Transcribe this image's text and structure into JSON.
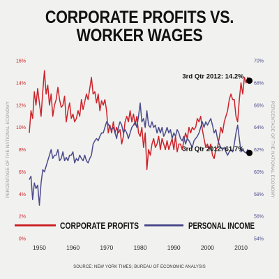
{
  "title_line1": "CORPORATE PROFITS VS.",
  "title_line2": "WORKER WAGES",
  "source": "SOURCE: NEW YORK TIMES; BUREAU OF ECONOMIC ANALYSIS",
  "chart_data": {
    "type": "line",
    "xlabel": "",
    "ylabel_left": "PERCENTAGE OF THE NATIONAL ECONOMY",
    "ylabel_right": "PERCENTAGE OF THE NATIONAL ECONOMY",
    "xlim": [
      1947,
      2013
    ],
    "ylim_left": [
      0,
      16
    ],
    "ylim_right": [
      54,
      70
    ],
    "x_ticks": [
      1950,
      1960,
      1970,
      1980,
      1990,
      2000,
      2010
    ],
    "y_ticks_left": [
      "0%",
      "2%",
      "4%",
      "6%",
      "8%",
      "10%",
      "12%",
      "14%",
      "16%"
    ],
    "y_ticks_right": [
      "54%",
      "56%",
      "58%",
      "60%",
      "62%",
      "64%",
      "66%",
      "68%",
      "70%"
    ],
    "grid": false,
    "legend_position": "bottom-inside",
    "colors": {
      "profits": "#cc2229",
      "income": "#4b4a8c",
      "left_axis": "#cc2229",
      "right_axis": "#4b4a8c"
    },
    "series": [
      {
        "name": "CORPORATE PROFITS",
        "axis": "left",
        "x": [
          1947,
          1947.5,
          1948,
          1948.5,
          1949,
          1949.5,
          1950,
          1950.5,
          1951,
          1951.5,
          1952,
          1952.5,
          1953,
          1953.5,
          1954,
          1954.5,
          1955,
          1955.5,
          1956,
          1956.5,
          1957,
          1957.5,
          1958,
          1958.5,
          1959,
          1959.5,
          1960,
          1960.5,
          1961,
          1961.5,
          1962,
          1962.5,
          1963,
          1963.5,
          1964,
          1964.5,
          1965,
          1965.5,
          1966,
          1966.5,
          1967,
          1967.5,
          1968,
          1968.5,
          1969,
          1969.5,
          1970,
          1970.5,
          1971,
          1971.5,
          1972,
          1972.5,
          1973,
          1973.5,
          1974,
          1974.5,
          1975,
          1975.5,
          1976,
          1976.5,
          1977,
          1977.5,
          1978,
          1978.5,
          1979,
          1979.5,
          1980,
          1980.5,
          1981,
          1981.5,
          1982,
          1982.5,
          1983,
          1983.5,
          1984,
          1984.5,
          1985,
          1985.5,
          1986,
          1986.5,
          1987,
          1987.5,
          1988,
          1988.5,
          1989,
          1989.5,
          1990,
          1990.5,
          1991,
          1991.5,
          1992,
          1992.5,
          1993,
          1993.5,
          1994,
          1994.5,
          1995,
          1995.5,
          1996,
          1996.5,
          1997,
          1997.5,
          1998,
          1998.5,
          1999,
          1999.5,
          2000,
          2000.5,
          2001,
          2001.5,
          2002,
          2002.5,
          2003,
          2003.5,
          2004,
          2004.5,
          2005,
          2005.5,
          2006,
          2006.5,
          2007,
          2007.5,
          2008,
          2008.5,
          2009,
          2009.5,
          2010,
          2010.5,
          2011,
          2011.5,
          2012,
          2012.5
        ],
        "values": [
          9.5,
          11.5,
          10.8,
          13.2,
          12.0,
          13.5,
          12.2,
          11.0,
          13.2,
          15.1,
          13.0,
          13.8,
          12.0,
          13.0,
          11.0,
          12.0,
          12.5,
          13.6,
          12.5,
          11.8,
          12.0,
          12.8,
          10.5,
          11.5,
          12.2,
          10.8,
          11.2,
          10.5,
          10.8,
          11.5,
          11.0,
          12.5,
          11.6,
          12.3,
          13.0,
          12.5,
          13.5,
          14.5,
          13.0,
          13.2,
          12.2,
          13.0,
          11.5,
          12.4,
          12.0,
          12.5,
          11.5,
          9.5,
          10.2,
          9.5,
          10.5,
          9.5,
          10.0,
          9.5,
          9.8,
          8.5,
          9.2,
          10.5,
          11.0,
          10.5,
          11.5,
          10.5,
          11.2,
          10.2,
          11.0,
          9.5,
          9.2,
          10.0,
          8.2,
          9.5,
          6.2,
          8.0,
          7.5,
          8.5,
          9.0,
          8.2,
          8.5,
          9.2,
          8.0,
          9.0,
          8.5,
          8.0,
          8.8,
          8.0,
          8.5,
          9.0,
          8.0,
          9.2,
          7.8,
          8.5,
          8.5,
          8.0,
          8.8,
          9.5,
          9.0,
          10.0,
          9.5,
          10.0,
          9.8,
          10.0,
          10.8,
          10.5,
          11.0,
          9.8,
          9.0,
          8.2,
          8.5,
          8.0,
          8.5,
          7.5,
          7.2,
          8.0,
          8.2,
          9.0,
          10.0,
          9.5,
          10.5,
          11.0,
          11.5,
          12.5,
          13.0,
          12.5,
          12.5,
          11.0,
          10.5,
          12.5,
          14.0,
          13.0,
          14.5,
          14.0,
          14.5,
          14.2
        ]
      },
      {
        "name": "PERSONAL INCOME",
        "axis": "right",
        "x": [
          1947,
          1947.5,
          1948,
          1948.5,
          1949,
          1949.5,
          1950,
          1950.5,
          1951,
          1951.5,
          1952,
          1952.5,
          1953,
          1953.5,
          1954,
          1954.5,
          1955,
          1955.5,
          1956,
          1956.5,
          1957,
          1957.5,
          1958,
          1958.5,
          1959,
          1959.5,
          1960,
          1960.5,
          1961,
          1961.5,
          1962,
          1962.5,
          1963,
          1963.5,
          1964,
          1964.5,
          1965,
          1965.5,
          1966,
          1966.5,
          1967,
          1967.5,
          1968,
          1968.5,
          1969,
          1969.5,
          1970,
          1970.5,
          1971,
          1971.5,
          1972,
          1972.5,
          1973,
          1973.5,
          1974,
          1974.5,
          1975,
          1975.5,
          1976,
          1976.5,
          1977,
          1977.5,
          1978,
          1978.5,
          1979,
          1979.5,
          1980,
          1980.5,
          1981,
          1981.5,
          1982,
          1982.5,
          1983,
          1983.5,
          1984,
          1984.5,
          1985,
          1985.5,
          1986,
          1986.5,
          1987,
          1987.5,
          1988,
          1988.5,
          1989,
          1989.5,
          1990,
          1990.5,
          1991,
          1991.5,
          1992,
          1992.5,
          1993,
          1993.5,
          1994,
          1994.5,
          1995,
          1995.5,
          1996,
          1996.5,
          1997,
          1997.5,
          1998,
          1998.5,
          1999,
          1999.5,
          2000,
          2000.5,
          2001,
          2001.5,
          2002,
          2002.5,
          2003,
          2003.5,
          2004,
          2004.5,
          2005,
          2005.5,
          2006,
          2006.5,
          2007,
          2007.5,
          2008,
          2008.5,
          2009,
          2009.5,
          2010,
          2010.5,
          2011,
          2011.5,
          2012,
          2012.5
        ],
        "values": [
          59.3,
          59.6,
          57.5,
          59.0,
          58.5,
          58.8,
          57.0,
          59.0,
          60.2,
          60.0,
          60.5,
          61.0,
          61.5,
          62.0,
          61.2,
          61.5,
          61.5,
          62.0,
          61.0,
          61.2,
          61.8,
          61.0,
          61.3,
          61.0,
          61.5,
          61.5,
          61.8,
          60.8,
          61.2,
          61.0,
          61.5,
          61.2,
          61.0,
          61.5,
          61.0,
          60.8,
          61.2,
          61.5,
          62.5,
          62.8,
          63.0,
          62.8,
          63.2,
          63.5,
          63.5,
          64.0,
          64.5,
          64.3,
          64.0,
          63.8,
          64.0,
          63.5,
          63.0,
          64.0,
          64.5,
          64.2,
          63.5,
          63.8,
          63.5,
          63.0,
          63.5,
          64.0,
          64.2,
          64.5,
          64.0,
          65.0,
          66.2,
          64.5,
          64.8,
          64.0,
          65.5,
          64.2,
          64.0,
          64.5,
          64.0,
          64.2,
          63.5,
          64.0,
          63.5,
          64.0,
          63.2,
          63.5,
          64.0,
          63.5,
          63.8,
          63.0,
          63.5,
          63.2,
          63.8,
          63.5,
          63.0,
          62.8,
          63.2,
          62.5,
          63.0,
          62.8,
          62.5,
          62.2,
          62.8,
          63.0,
          63.2,
          63.5,
          64.0,
          64.5,
          64.0,
          64.5,
          64.2,
          64.5,
          64.8,
          64.2,
          63.5,
          63.8,
          63.0,
          62.5,
          62.2,
          62.0,
          62.2,
          61.8,
          61.5,
          61.8,
          62.0,
          61.8,
          62.5,
          63.5,
          64.2,
          63.0,
          61.8,
          62.0,
          61.8,
          61.7,
          62.0,
          61.7
        ]
      }
    ],
    "annotations": [
      {
        "text": "3rd Qtr 2012: 14.2%",
        "x": 2012.5,
        "y": 14.2,
        "axis": "left"
      },
      {
        "text": "3rd Qtr 2012: 61.7%",
        "x": 2012.5,
        "y": 61.7,
        "axis": "right"
      }
    ]
  }
}
